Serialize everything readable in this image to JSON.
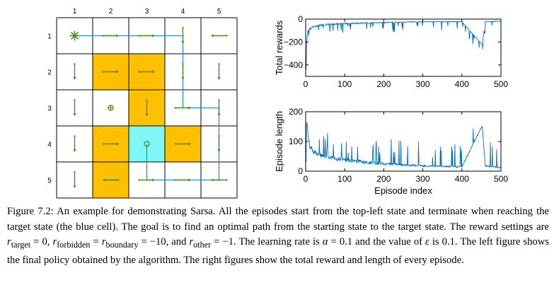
{
  "grid": {
    "col_labels": [
      "1",
      "2",
      "3",
      "4",
      "5"
    ],
    "row_labels": [
      "1",
      "2",
      "3",
      "4",
      "5"
    ],
    "colors": {
      "forbidden": "#ffc000",
      "target": "#7ff8f8",
      "arrow": "#4a8b1f",
      "path": "#2a8fd0",
      "line": "#000000"
    },
    "forbidden_cells": [
      [
        2,
        2
      ],
      [
        2,
        3
      ],
      [
        3,
        3
      ],
      [
        4,
        2
      ],
      [
        4,
        4
      ],
      [
        5,
        2
      ]
    ],
    "target_cell": [
      4,
      3
    ],
    "start_cell": [
      1,
      1
    ],
    "policy": [
      [
        "stay-star",
        "right",
        "right",
        "down",
        "left"
      ],
      [
        "down",
        "right",
        "right",
        "down",
        "down"
      ],
      [
        "down",
        "stay",
        "down",
        "right",
        "down"
      ],
      [
        "down",
        "right",
        "stay",
        "right",
        "down"
      ],
      [
        "down",
        "left",
        "right",
        "right",
        "left"
      ]
    ],
    "episode_path": [
      [
        1,
        1
      ],
      [
        1,
        4
      ],
      [
        3,
        4
      ],
      [
        3,
        5
      ],
      [
        5,
        5
      ],
      [
        5,
        3
      ],
      [
        4,
        3
      ]
    ]
  },
  "rewards_plot": {
    "ylabel": "Total rewards",
    "xticks": [
      0,
      100,
      200,
      300,
      400,
      500
    ],
    "yticks": [
      0,
      -200,
      -400
    ],
    "xlim": [
      0,
      500
    ],
    "ylim": [
      -500,
      0
    ],
    "color": "#0072bd"
  },
  "length_plot": {
    "ylabel": "Episode length",
    "xlabel": "Episode index",
    "xticks": [
      0,
      100,
      200,
      300,
      400,
      500
    ],
    "yticks": [
      0,
      100,
      200
    ],
    "xlim": [
      0,
      500
    ],
    "ylim": [
      0,
      200
    ],
    "color": "#0072bd"
  },
  "chart_data": [
    {
      "type": "line",
      "ylabel": "Total rewards",
      "xlim": [
        0,
        500
      ],
      "ylim": [
        -500,
        0
      ],
      "series": [
        {
          "x": [
            1,
            3,
            6,
            10,
            20,
            40,
            80,
            150,
            200,
            300,
            400,
            452,
            460,
            500
          ],
          "values": [
            -440,
            -180,
            -100,
            -80,
            -60,
            -45,
            -35,
            -30,
            -25,
            -20,
            -20,
            -220,
            -20,
            -15
          ]
        }
      ]
    },
    {
      "type": "line",
      "ylabel": "Episode length",
      "xlabel": "Episode index",
      "xlim": [
        0,
        500
      ],
      "ylim": [
        0,
        200
      ],
      "series": [
        {
          "x": [
            1,
            3,
            6,
            10,
            20,
            40,
            80,
            150,
            200,
            300,
            400,
            452,
            460,
            500
          ],
          "values": [
            30,
            160,
            120,
            80,
            60,
            45,
            35,
            25,
            20,
            15,
            12,
            150,
            15,
            10
          ]
        }
      ]
    }
  ],
  "caption": {
    "label": "Figure 7.2:",
    "s1": " An example for demonstrating Sarsa.  All the episodes start from the top-left state and terminate when reaching the target state (the blue cell).  The goal is to find an optimal path from the starting state to the target state. The reward settings are ",
    "r_target": "r",
    "sub_target": "target",
    "eq1": " = 0, ",
    "r_forbidden": "r",
    "sub_forbidden": "forbidden",
    "eq2": " = ",
    "r_boundary": "r",
    "sub_boundary": "boundary",
    "eq3": " = −10, and ",
    "r_other": "r",
    "sub_other": "other",
    "eq4": " = −1. The learning rate is ",
    "alpha": "α",
    "eq5": " = 0.1 and the value of ",
    "epsilon": "ε",
    "s2": " is 0.1. The left figure shows the final policy obtained by the algorithm. The right figures show the total reward and length of every episode."
  }
}
